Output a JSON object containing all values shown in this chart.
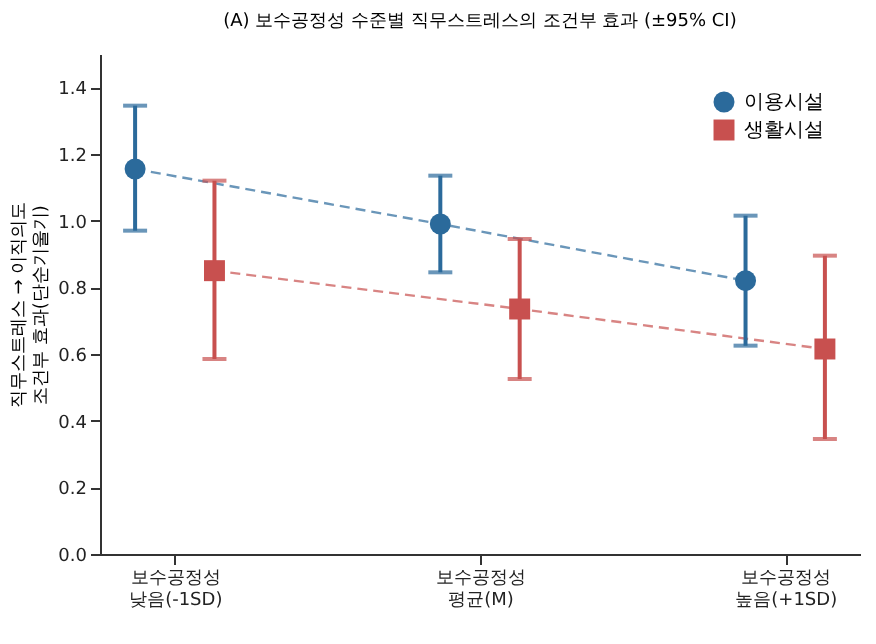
{
  "chart_data": {
    "type": "line",
    "title": "(A) 보수공정성 수준별 직무스트레스의 조건부 효과 (±95% CI)",
    "ylabel": "직무스트레스 → 이직의도\n조건부 효과(단순기울기)",
    "categories": [
      "보수공정성\n낮음(-1SD)",
      "보수공정성\n평균(M)",
      "보수공정성\n높음(+1SD)"
    ],
    "series": [
      {
        "name": "이용시설",
        "color": "#2b6a9b",
        "marker": "circle",
        "line_style": "dashed",
        "values": [
          1.155,
          0.99,
          0.82
        ],
        "errors": [
          [
            0.97,
            1.345
          ],
          [
            0.845,
            1.135
          ],
          [
            0.625,
            1.015
          ]
        ]
      },
      {
        "name": "생활시설",
        "color": "#c8504f",
        "marker": "square",
        "line_style": "dashed",
        "values": [
          0.85,
          0.735,
          0.615
        ],
        "errors": [
          [
            0.585,
            1.12
          ],
          [
            0.525,
            0.945
          ],
          [
            0.345,
            0.895
          ]
        ]
      }
    ],
    "ylim": [
      0,
      1.5
    ],
    "yticks": [
      {
        "value": 0,
        "label": "0.0"
      },
      {
        "value": 0.2,
        "label": "0.2"
      },
      {
        "value": 0.4,
        "label": "0.4"
      },
      {
        "value": 0.6,
        "label": "0.6"
      },
      {
        "value": 0.8,
        "label": "0.8"
      },
      {
        "value": 1.0,
        "label": "1.0"
      },
      {
        "value": 1.2,
        "label": "1.2"
      },
      {
        "value": 1.4,
        "label": "1.4"
      }
    ],
    "grid": false,
    "legend": "top right"
  }
}
